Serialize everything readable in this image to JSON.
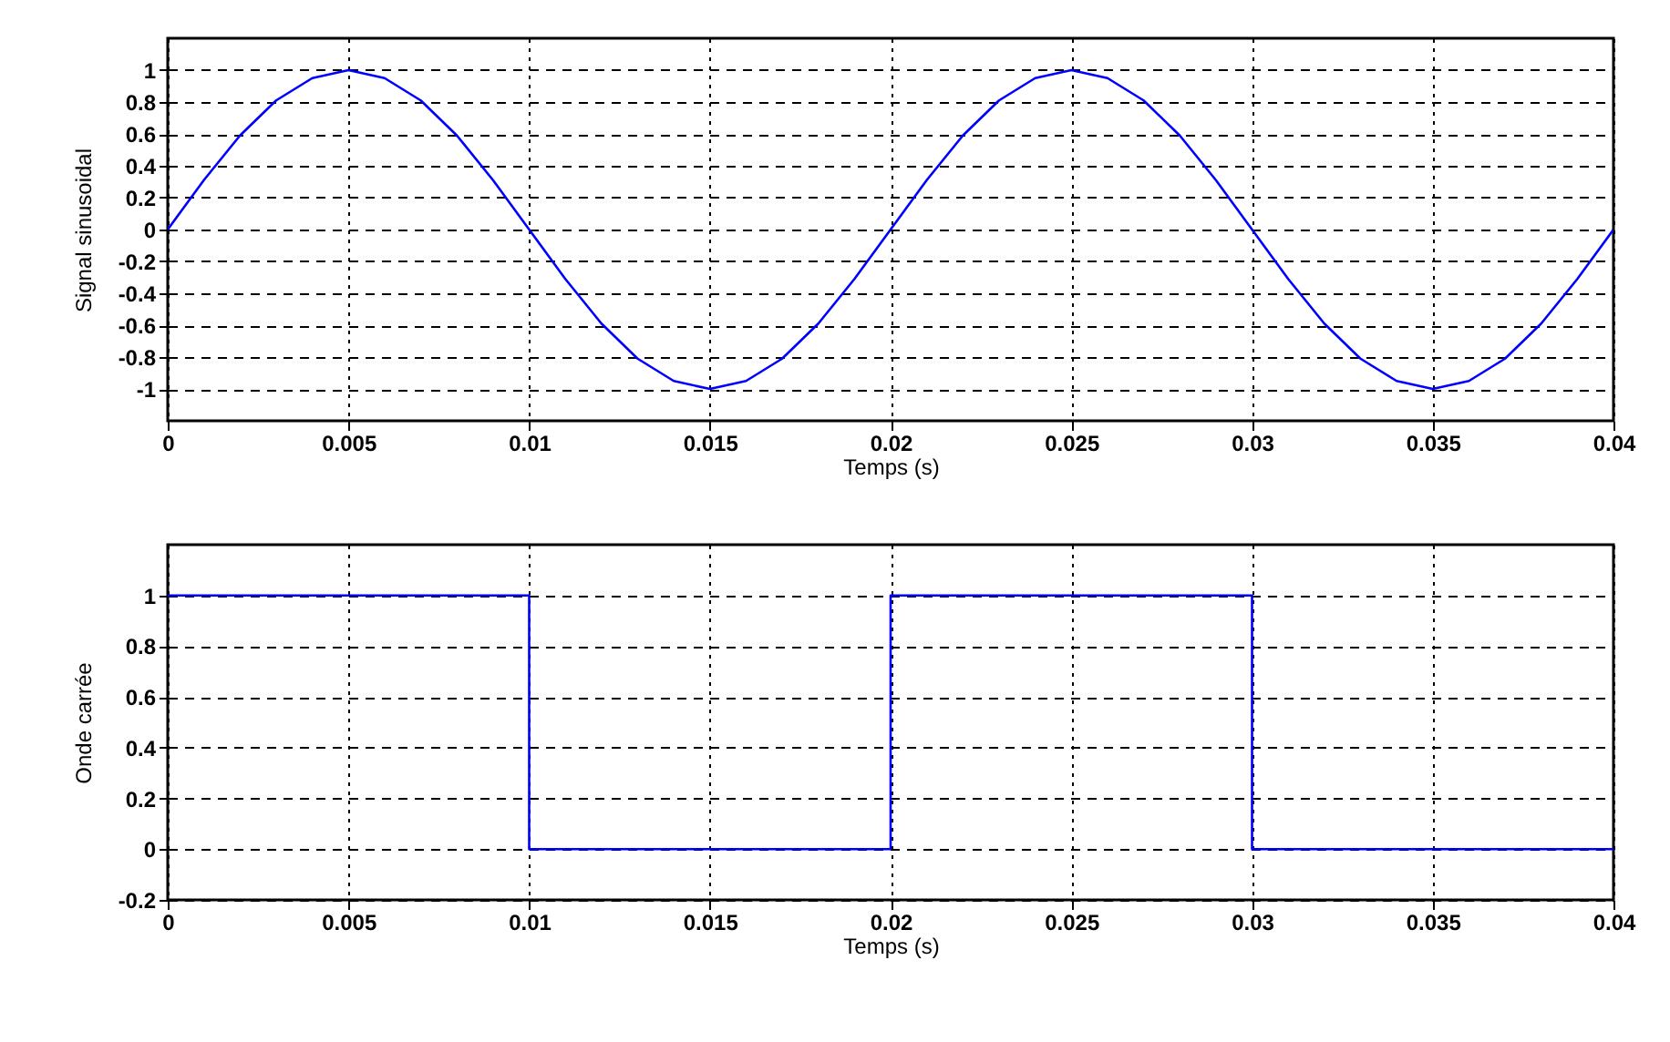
{
  "chart_data": [
    {
      "type": "line",
      "ylabel": "Signal sinusoidal",
      "xlabel": "Temps (s)",
      "x": [
        0,
        0.001,
        0.002,
        0.003,
        0.004,
        0.005,
        0.006,
        0.007,
        0.008,
        0.009,
        0.01,
        0.011,
        0.012,
        0.013,
        0.014,
        0.015,
        0.016,
        0.017,
        0.018,
        0.019,
        0.02,
        0.021,
        0.022,
        0.023,
        0.024,
        0.025,
        0.026,
        0.027,
        0.028,
        0.029,
        0.03,
        0.031,
        0.032,
        0.033,
        0.034,
        0.035,
        0.036,
        0.037,
        0.038,
        0.039,
        0.04
      ],
      "series": [
        {
          "color": "#0000ff",
          "values": [
            0,
            0.31,
            0.59,
            0.81,
            0.95,
            1,
            0.95,
            0.81,
            0.59,
            0.31,
            0,
            -0.31,
            -0.59,
            -0.81,
            -0.95,
            -1,
            -0.95,
            -0.81,
            -0.59,
            -0.31,
            0,
            0.31,
            0.59,
            0.81,
            0.95,
            1,
            0.95,
            0.81,
            0.59,
            0.31,
            0,
            -0.31,
            -0.59,
            -0.81,
            -0.95,
            -1,
            -0.95,
            -0.81,
            -0.59,
            -0.31,
            0
          ]
        }
      ],
      "xlim": [
        0,
        0.04
      ],
      "xticks": [
        0,
        0.005,
        0.01,
        0.015,
        0.02,
        0.025,
        0.03,
        0.035,
        0.04
      ],
      "ylim": [
        -1.2,
        1.2
      ],
      "yticks": [
        -1,
        -0.8,
        -0.6,
        -0.4,
        -0.2,
        0,
        0.2,
        0.4,
        0.6,
        0.8,
        1
      ],
      "grid": true
    },
    {
      "type": "line",
      "ylabel": "Onde carrée",
      "xlabel": "Temps (s)",
      "x": [
        0,
        0.01,
        0.01,
        0.02,
        0.02,
        0.03,
        0.03,
        0.04
      ],
      "series": [
        {
          "color": "#0000ff",
          "values": [
            1,
            1,
            0,
            0,
            1,
            1,
            0,
            0
          ]
        }
      ],
      "xlim": [
        0,
        0.04
      ],
      "xticks": [
        0,
        0.005,
        0.01,
        0.015,
        0.02,
        0.025,
        0.03,
        0.035,
        0.04
      ],
      "ylim": [
        -0.2,
        1.2
      ],
      "yticks": [
        -0.2,
        0,
        0.2,
        0.4,
        0.6,
        0.8,
        1
      ],
      "grid": true
    }
  ]
}
